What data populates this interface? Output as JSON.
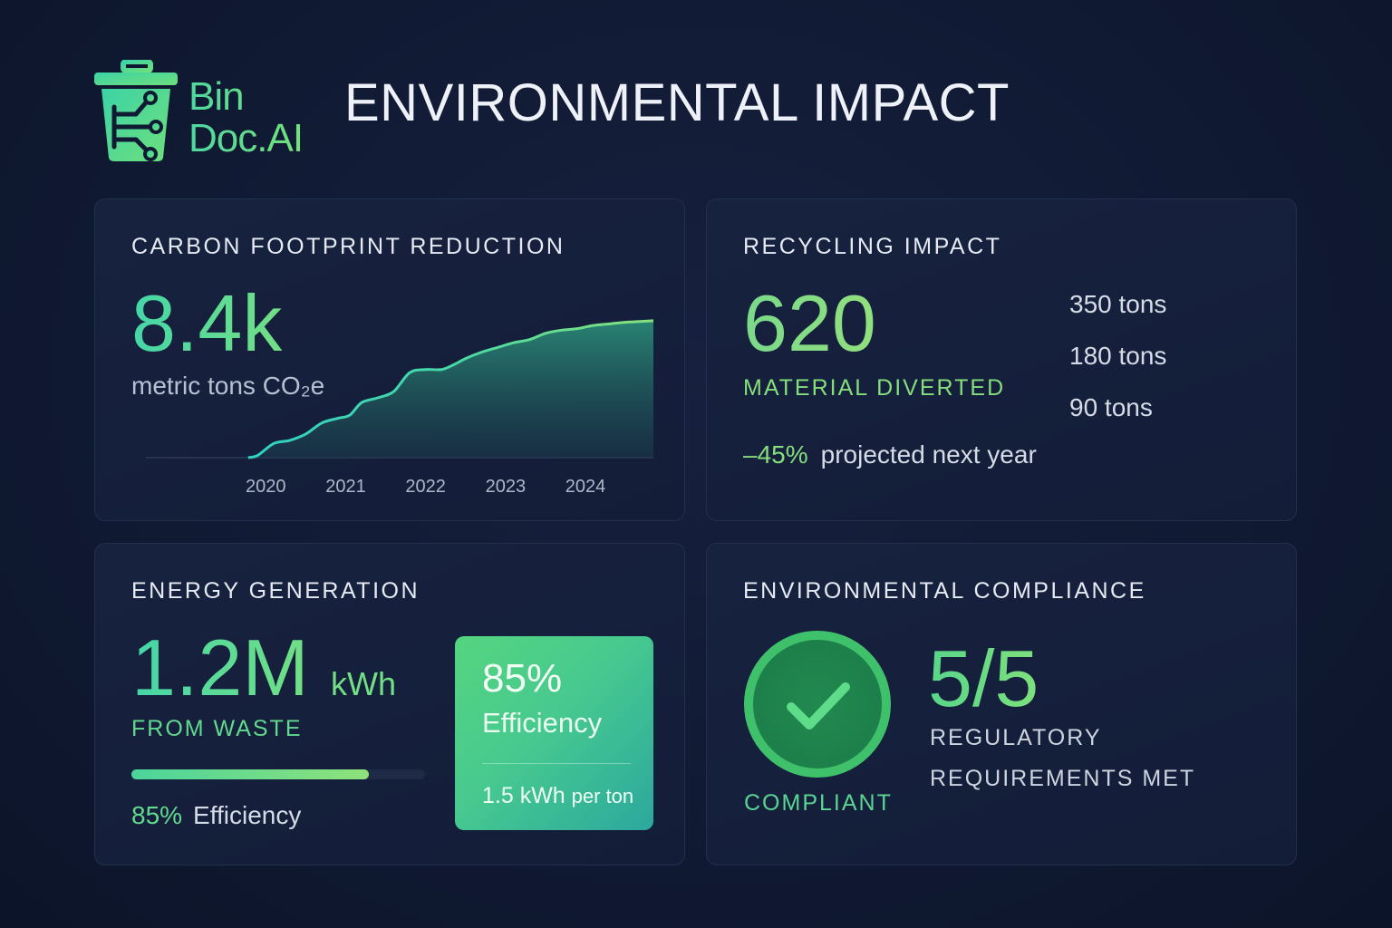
{
  "brand": {
    "line1": "Bin",
    "line2": "Doc.AI"
  },
  "page": {
    "title": "ENVIRONMENTAL IMPACT"
  },
  "carbon": {
    "title": "CARBON FOOTPRINT REDUCTION",
    "value": "8.4k",
    "unit": "metric tons CO₂e",
    "years": [
      "2020",
      "2021",
      "2022",
      "2023",
      "2024"
    ]
  },
  "recycling": {
    "title": "RECYCLING IMPACT",
    "value": "620",
    "label": "MATERIAL DIVERTED",
    "breakdown": [
      "350 tons",
      "180 tons",
      "90 tons"
    ],
    "projection_pct": "–45%",
    "projection_text": "projected next year"
  },
  "energy": {
    "title": "ENERGY GENERATION",
    "value": "1.2M",
    "unit": "kWh",
    "label": "FROM WASTE",
    "progress": 0.81,
    "efficiency_pct": "85%",
    "efficiency_label": "Efficiency",
    "box_value": "85%",
    "box_label": "Efficiency",
    "box_rate": "1.5 kWh",
    "box_rate_suffix": "per ton"
  },
  "compliance": {
    "title": "ENVIRONMENTAL COMPLIANCE",
    "status": "COMPLIANT",
    "value": "5/5",
    "label_line1": "REGULATORY",
    "label_line2": "REQUIREMENTS MET"
  },
  "colors": {
    "background": "#101a33",
    "card": "#152040",
    "accent_teal": "#45d6a8",
    "accent_green": "#86dd7c",
    "check_green": "#3fc16b"
  },
  "chart_data": {
    "type": "area",
    "title": "",
    "xlabel": "",
    "ylabel": "",
    "x": [
      2019.88,
      2020.0,
      2020.2,
      2020.4,
      2020.6,
      2020.8,
      2021.0,
      2021.15,
      2021.3,
      2021.5,
      2021.7,
      2021.9,
      2022.1,
      2022.3,
      2022.45,
      2022.6,
      2022.8,
      2023.0,
      2023.2,
      2023.4,
      2023.6,
      2023.8,
      2024.0,
      2024.2,
      2024.4,
      2024.6,
      2024.95
    ],
    "y": [
      0.0,
      0.15,
      0.9,
      1.1,
      1.5,
      2.2,
      2.5,
      2.7,
      3.5,
      3.8,
      4.2,
      5.4,
      5.6,
      5.6,
      5.9,
      6.3,
      6.7,
      7.0,
      7.3,
      7.5,
      7.9,
      8.1,
      8.2,
      8.4,
      8.5,
      8.6,
      8.7
    ],
    "xlim": [
      2018.6,
      2024.95
    ],
    "ylim": [
      0,
      9.5
    ],
    "series": [
      {
        "values": [
          0.0,
          0.15,
          0.9,
          1.1,
          1.5,
          2.2,
          2.5,
          2.7,
          3.5,
          3.8,
          4.2,
          5.4,
          5.6,
          5.6,
          5.9,
          6.3,
          6.7,
          7.0,
          7.3,
          7.5,
          7.9,
          8.1,
          8.2,
          8.4,
          8.5,
          8.6,
          8.7
        ]
      }
    ],
    "grid": false
  }
}
